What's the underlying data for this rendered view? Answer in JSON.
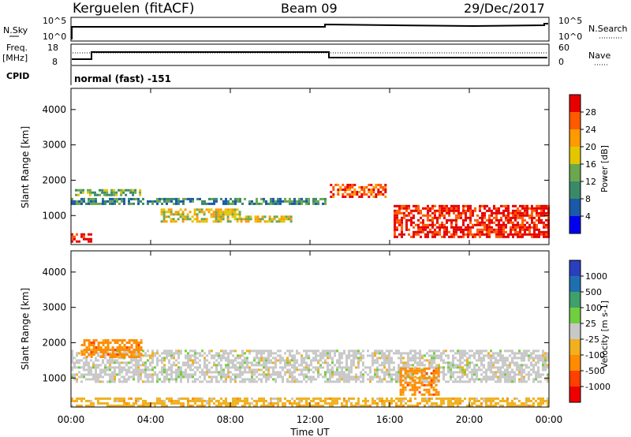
{
  "header": {
    "station": "Kerguelen (fitACF)",
    "beam": "Beam 09",
    "date": "29/Dec/2017"
  },
  "strip_nsky": {
    "left_label": "N.Sky",
    "ticks_left": [
      "10^5",
      "10^0"
    ],
    "ticks_right": [
      "10^5",
      "10^0"
    ],
    "right_label": "N.Search"
  },
  "strip_freq": {
    "left_label_1": "Freq.",
    "left_label_2": "[MHz]",
    "ticks_left": [
      "18",
      "8"
    ],
    "ticks_right": [
      "60",
      "0"
    ],
    "right_label": "Nave"
  },
  "cpid": {
    "label": "CPID",
    "text": "normal (fast) -151"
  },
  "xaxis": {
    "title": "Time UT",
    "ticks": [
      "00:00",
      "04:00",
      "08:00",
      "12:00",
      "16:00",
      "20:00",
      "00:00"
    ]
  },
  "chart_data": [
    {
      "type": "heatmap",
      "quantity": "Power",
      "xlabel": "Time UT",
      "ylabel": "Slant Range [km]",
      "xlim_hours": [
        0,
        24
      ],
      "ylim": [
        180,
        4600
      ],
      "yticks": [
        "4000",
        "3000",
        "2000",
        "1000"
      ],
      "colorbar": {
        "label": "Power [dB]",
        "ticks": [
          "28",
          "24",
          "20",
          "16",
          "12",
          "8",
          "4"
        ],
        "colors": [
          "#e60000",
          "#ff5a00",
          "#ff9a00",
          "#e3c600",
          "#6aa84f",
          "#3a8a6a",
          "#1a5aa8",
          "#0000ee"
        ]
      },
      "regions": [
        {
          "t0": 0,
          "t1": 12.8,
          "r0": 1300,
          "r1": 1500,
          "level": 10
        },
        {
          "t0": 0.2,
          "t1": 3.5,
          "r0": 1600,
          "r1": 1750,
          "level": 12
        },
        {
          "t0": 4.5,
          "t1": 8.5,
          "r0": 800,
          "r1": 1200,
          "level": 16
        },
        {
          "t0": 8.5,
          "t1": 11.0,
          "r0": 800,
          "r1": 1000,
          "level": 18
        },
        {
          "t0": 13.0,
          "t1": 15.8,
          "r0": 1500,
          "r1": 1900,
          "level": 26
        },
        {
          "t0": 16.2,
          "t1": 24.0,
          "r0": 400,
          "r1": 1300,
          "level": 28
        },
        {
          "t0": 0,
          "t1": 1.0,
          "r0": 250,
          "r1": 500,
          "level": 28
        }
      ]
    },
    {
      "type": "heatmap",
      "quantity": "Velocity",
      "xlabel": "Time UT",
      "ylabel": "Slant Range [km]",
      "xlim_hours": [
        0,
        24
      ],
      "ylim": [
        180,
        4600
      ],
      "yticks": [
        "4000",
        "3000",
        "2000",
        "1000"
      ],
      "colorbar": {
        "label": "Velocity [m s-1]",
        "ticks": [
          "1000",
          "500",
          "100",
          "25",
          "-25",
          "-100",
          "-500",
          "-1000"
        ],
        "colors": [
          "#2a3fbf",
          "#1f6fb0",
          "#3fa06a",
          "#6fcf3f",
          "#c8c8c8",
          "#f0b020",
          "#ff8c00",
          "#ff4000",
          "#ee0000"
        ]
      },
      "regions": [
        {
          "t0": 0,
          "t1": 24,
          "r0": 900,
          "r1": 1800,
          "velocity": 0
        },
        {
          "t0": 0.5,
          "t1": 3.5,
          "r0": 1600,
          "r1": 2100,
          "velocity": -300
        },
        {
          "t0": 16.5,
          "t1": 18.5,
          "r0": 500,
          "r1": 1300,
          "velocity": -150
        },
        {
          "t0": 0,
          "t1": 24,
          "r0": 200,
          "r1": 450,
          "velocity": -80
        }
      ]
    }
  ]
}
